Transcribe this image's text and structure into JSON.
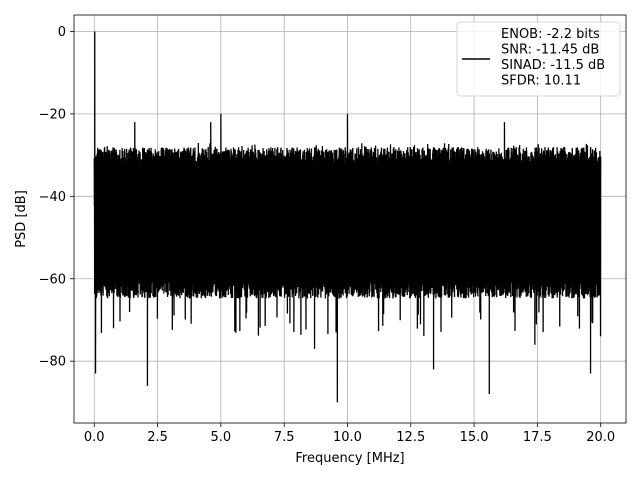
{
  "chart_data": {
    "type": "line",
    "xlabel": "Frequency [MHz]",
    "ylabel": "PSD [dB]",
    "xlim": [
      -0.8,
      21.0
    ],
    "ylim": [
      -95,
      4
    ],
    "xticks": [
      0.0,
      2.5,
      5.0,
      7.5,
      10.0,
      12.5,
      15.0,
      17.5,
      20.0
    ],
    "xtick_labels": [
      "0.0",
      "2.5",
      "5.0",
      "7.5",
      "10.0",
      "12.5",
      "15.0",
      "17.5",
      "20.0"
    ],
    "yticks": [
      0,
      -20,
      -40,
      -60,
      -80
    ],
    "ytick_labels": [
      "0",
      "−20",
      "−40",
      "−60",
      "−80"
    ],
    "grid": true,
    "legend_position": "top-right",
    "series": [
      {
        "name": "ENOB: -2.2 bits\nSNR: -11.45 dB\nSINAD: -11.5 dB\nSFDR: 10.11",
        "color": "#000000",
        "x_range": [
          0.0,
          20.0
        ],
        "noise_band": {
          "upper": -30,
          "lower": -62,
          "typical_peak_upper": -27,
          "typical_dip_lower": -68
        },
        "features": [
          {
            "x": 0.02,
            "y": 0
          },
          {
            "x": 0.05,
            "y": -83
          },
          {
            "x": 1.6,
            "y": -22
          },
          {
            "x": 2.1,
            "y": -86
          },
          {
            "x": 4.6,
            "y": -22
          },
          {
            "x": 5.0,
            "y": -20
          },
          {
            "x": 8.7,
            "y": -77
          },
          {
            "x": 9.6,
            "y": -90
          },
          {
            "x": 10.0,
            "y": -20
          },
          {
            "x": 13.4,
            "y": -82
          },
          {
            "x": 15.6,
            "y": -88
          },
          {
            "x": 16.2,
            "y": -22
          },
          {
            "x": 17.4,
            "y": -76
          },
          {
            "x": 19.6,
            "y": -83
          }
        ]
      }
    ]
  }
}
